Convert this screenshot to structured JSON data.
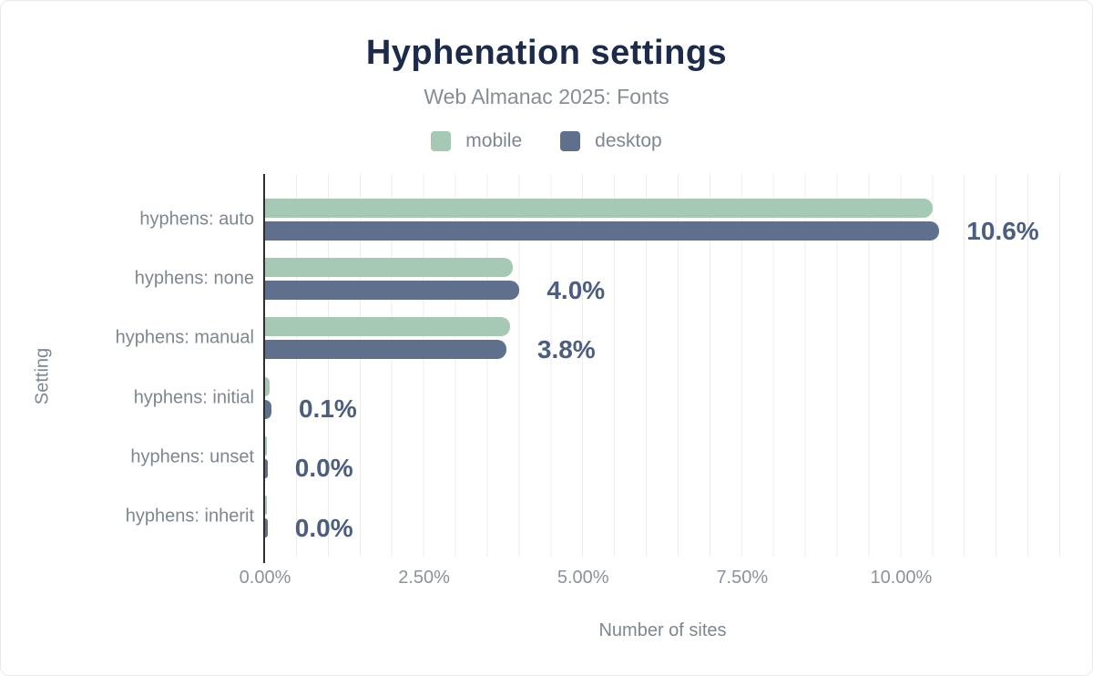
{
  "chart_data": {
    "type": "bar",
    "orientation": "horizontal",
    "title": "Hyphenation settings",
    "subtitle": "Web Almanac 2025: Fonts",
    "xlabel": "Number of sites",
    "ylabel": "Setting",
    "categories": [
      "hyphens: auto",
      "hyphens: none",
      "hyphens: manual",
      "hyphens: initial",
      "hyphens: unset",
      "hyphens: inherit"
    ],
    "series": [
      {
        "name": "mobile",
        "color": "#a6c9b6",
        "values": [
          10.5,
          3.9,
          3.85,
          0.07,
          0.03,
          0.03
        ]
      },
      {
        "name": "desktop",
        "color": "#5f708d",
        "values": [
          10.6,
          4.0,
          3.8,
          0.1,
          0.04,
          0.04
        ]
      }
    ],
    "value_labels": [
      "10.6%",
      "4.0%",
      "3.8%",
      "0.1%",
      "0.0%",
      "0.0%"
    ],
    "x_ticks": [
      "0.00%",
      "2.50%",
      "5.00%",
      "7.50%",
      "10.00%"
    ],
    "xlim": [
      0,
      12.5
    ],
    "grid": "vertical-minor-0.5%",
    "legend_position": "top-center"
  },
  "colors": {
    "title": "#1c2b4a",
    "value_label": "#4c5e7f",
    "axis_line": "#2e2e2e",
    "gridline": "#ededed",
    "muted_text": "#7e868f"
  }
}
